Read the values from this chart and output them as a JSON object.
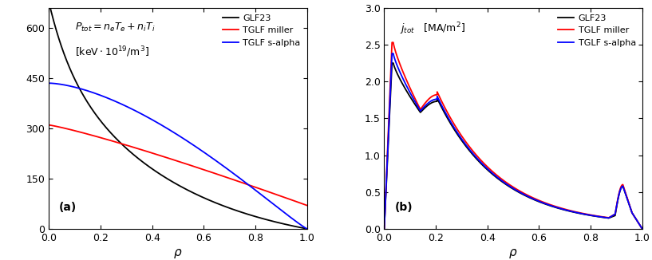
{
  "panel_a": {
    "title_line1": "$P_{tot} = n_e T_e + n_i T_i$",
    "title_line2": "$[\\mathrm{keV \\cdot 10^{19}/m^3}]$",
    "xlabel": "$\\rho$",
    "xlim": [
      0.0,
      1.0
    ],
    "ylim": [
      0,
      660
    ],
    "yticks": [
      0,
      150,
      300,
      450,
      600
    ],
    "xticks": [
      0.0,
      0.2,
      0.4,
      0.6,
      0.8,
      1.0
    ],
    "label_a": "(a)",
    "legend": [
      "GLF23",
      "TGLF miller",
      "TGLF s-alpha"
    ],
    "colors": [
      "black",
      "red",
      "blue"
    ]
  },
  "panel_b": {
    "title": "$j_{tot}$   $[\\mathrm{MA/m^2}]$",
    "xlabel": "$\\rho$",
    "xlim": [
      0.0,
      1.0
    ],
    "ylim": [
      0.0,
      3.0
    ],
    "yticks": [
      0.0,
      0.5,
      1.0,
      1.5,
      2.0,
      2.5,
      3.0
    ],
    "xticks": [
      0.0,
      0.2,
      0.4,
      0.6,
      0.8,
      1.0
    ],
    "label_b": "(b)",
    "legend": [
      "GLF23",
      "TGLF miller",
      "TGLF s-alpha"
    ],
    "colors": [
      "black",
      "red",
      "blue"
    ]
  }
}
